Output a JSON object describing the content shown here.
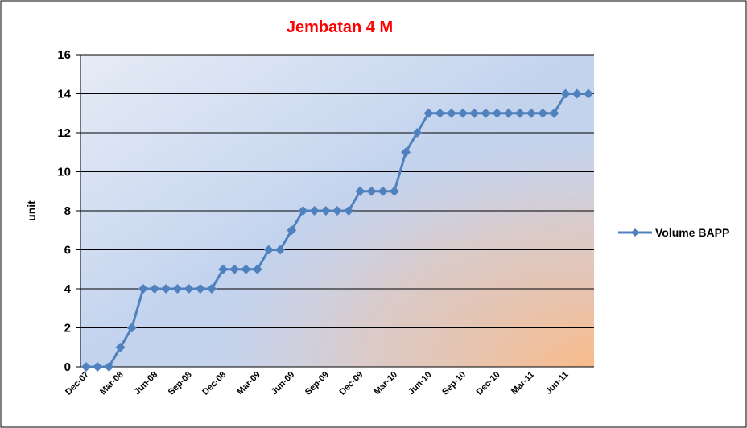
{
  "chart_data": {
    "type": "line",
    "title": "Jembatan 4 M",
    "y_label": "unit",
    "categories": [
      "Dec-07",
      null,
      null,
      "Mar-08",
      null,
      null,
      "Jun-08",
      null,
      null,
      "Sep-08",
      null,
      null,
      "Dec-08",
      null,
      null,
      "Mar-09",
      null,
      null,
      "Jun-09",
      null,
      null,
      "Sep-09",
      null,
      null,
      "Dec-09",
      null,
      null,
      "Mar-10",
      null,
      null,
      "Jun-10",
      null,
      null,
      "Sep-10",
      null,
      null,
      "Dec-10",
      null,
      null,
      "Mar-11",
      null,
      null,
      "Jun-11",
      null,
      null
    ],
    "series": [
      {
        "name": "Volume BAPP",
        "color": "#4f81bd",
        "values": [
          0,
          0,
          0,
          1,
          2,
          4,
          4,
          4,
          4,
          4,
          4,
          4,
          5,
          5,
          5,
          5,
          6,
          6,
          7,
          8,
          8,
          8,
          8,
          8,
          9,
          9,
          9,
          9,
          11,
          12,
          13,
          13,
          13,
          13,
          13,
          13,
          13,
          13,
          13,
          13,
          13,
          13,
          14,
          14,
          14
        ]
      }
    ],
    "ylim": [
      0,
      16
    ],
    "yticks": [
      0,
      2,
      4,
      6,
      8,
      10,
      12,
      14,
      16
    ],
    "grid": true,
    "legend": "right"
  }
}
